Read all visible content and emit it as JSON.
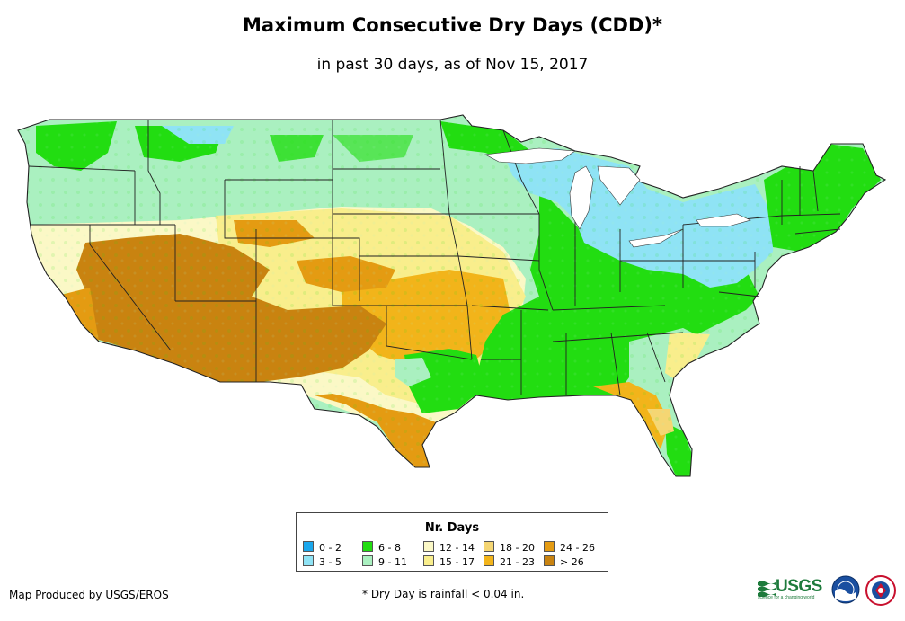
{
  "header": {
    "title": "Maximum Consecutive Dry Days (CDD)*",
    "subtitle": "in past 30 days, as of Nov 15, 2017"
  },
  "legend": {
    "title": "Nr. Days",
    "items": [
      {
        "label": "0 - 2",
        "color": "#1aa7ec"
      },
      {
        "label": "3 - 5",
        "color": "#8fe3f5"
      },
      {
        "label": "6 - 8",
        "color": "#22dd11"
      },
      {
        "label": "9 - 11",
        "color": "#aaf0c0"
      },
      {
        "label": "12 - 14",
        "color": "#fbf8c6"
      },
      {
        "label": "15 - 17",
        "color": "#f9ee8c"
      },
      {
        "label": "18 - 20",
        "color": "#f5d673"
      },
      {
        "label": "21 - 23",
        "color": "#f2b41a"
      },
      {
        "label": "24 - 26",
        "color": "#e49b12"
      },
      {
        "label": "> 26",
        "color": "#c98310"
      }
    ]
  },
  "footer": {
    "credit": "Map Produced by USGS/EROS",
    "note": "* Dry Day is rainfall < 0.04 in."
  },
  "logos": {
    "usgs": "USGS",
    "usgs_tagline": "science for a changing world",
    "noaa": "NOAA",
    "nws": "NATIONAL WEATHER SERVICE"
  }
}
